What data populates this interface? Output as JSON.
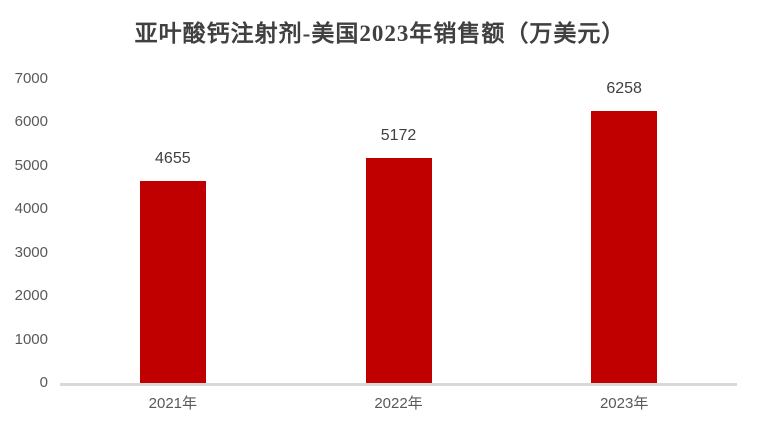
{
  "title": "亚叶酸钙注射剂-美国2023年销售额（万美元）",
  "colors": {
    "bar": "#c00000",
    "title": "#404040",
    "data_label": "#404040",
    "axis_label": "#595959",
    "axis_line": "#d9d9d9",
    "background": "#ffffff"
  },
  "chart_data": {
    "type": "bar",
    "title": "亚叶酸钙注射剂-美国2023年销售额（万美元）",
    "categories": [
      "2021年",
      "2022年",
      "2023年"
    ],
    "values": [
      4655,
      5172,
      6258
    ],
    "data_labels": [
      "4655",
      "5172",
      "6258"
    ],
    "xlabel": "",
    "ylabel": "",
    "ylim": [
      0,
      7000
    ],
    "ytick_step": 1000,
    "ytick_labels": [
      "7000",
      "6000",
      "5000",
      "4000",
      "3000",
      "2000",
      "1000",
      "0"
    ],
    "grid": false,
    "legend": "none",
    "bar_color": "#c00000",
    "data_labels_shown": true
  }
}
